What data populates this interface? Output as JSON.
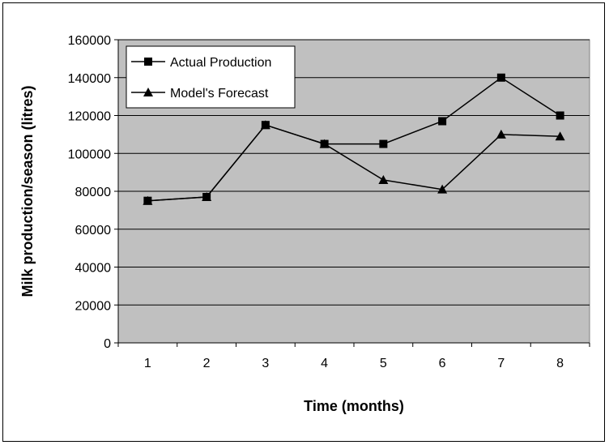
{
  "chart_data": {
    "type": "line",
    "title": "",
    "xlabel": "Time (months)",
    "ylabel": "Milk production/season (litres)",
    "categories": [
      "1",
      "2",
      "3",
      "4",
      "5",
      "6",
      "7",
      "8"
    ],
    "ylim": [
      0,
      160000
    ],
    "yticks": [
      "0",
      "20000",
      "40000",
      "60000",
      "80000",
      "100000",
      "120000",
      "140000",
      "160000"
    ],
    "grid": true,
    "legend_position": "top-left",
    "plot_background": "#c0c0c0",
    "line_color": "#000000",
    "series": [
      {
        "name": "Actual Production",
        "marker": "square",
        "values": [
          75000,
          77000,
          115000,
          105000,
          105000,
          117000,
          140000,
          120000
        ]
      },
      {
        "name": "Model's Forecast",
        "marker": "triangle",
        "values": [
          75000,
          77000,
          115000,
          105000,
          86000,
          81000,
          110000,
          109000
        ]
      }
    ]
  }
}
